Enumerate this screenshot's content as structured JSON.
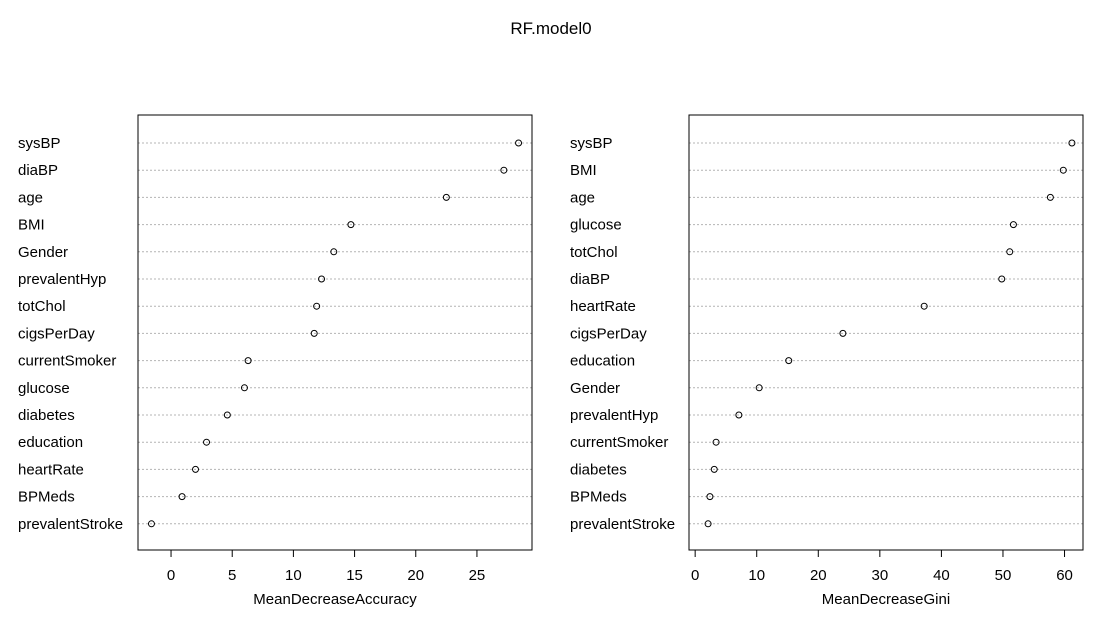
{
  "title": "RF.model0",
  "chart_data": [
    {
      "type": "scatter",
      "xlabel": "MeanDecreaseAccuracy",
      "xlim": [
        -2.7,
        29.5
      ],
      "xticks": [
        0,
        5,
        10,
        15,
        20,
        25
      ],
      "grid": "horizontal dotted",
      "categories": [
        "sysBP",
        "diaBP",
        "age",
        "BMI",
        "Gender",
        "prevalentHyp",
        "totChol",
        "cigsPerDay",
        "currentSmoker",
        "glucose",
        "diabetes",
        "education",
        "heartRate",
        "BPMeds",
        "prevalentStroke"
      ],
      "values": [
        28.4,
        27.2,
        22.5,
        14.7,
        13.3,
        12.3,
        11.9,
        11.7,
        6.3,
        6.0,
        4.6,
        2.9,
        2.0,
        0.9,
        -1.6
      ]
    },
    {
      "type": "scatter",
      "xlabel": "MeanDecreaseGini",
      "xlim": [
        -1,
        63
      ],
      "xticks": [
        0,
        10,
        20,
        30,
        40,
        50,
        60
      ],
      "grid": "horizontal dotted",
      "categories": [
        "sysBP",
        "BMI",
        "age",
        "glucose",
        "totChol",
        "diaBP",
        "heartRate",
        "cigsPerDay",
        "education",
        "Gender",
        "prevalentHyp",
        "currentSmoker",
        "diabetes",
        "BPMeds",
        "prevalentStroke"
      ],
      "values": [
        61.2,
        59.8,
        57.7,
        51.7,
        51.1,
        49.8,
        37.2,
        24.0,
        15.2,
        10.4,
        7.1,
        3.4,
        3.1,
        2.4,
        2.1
      ]
    }
  ]
}
